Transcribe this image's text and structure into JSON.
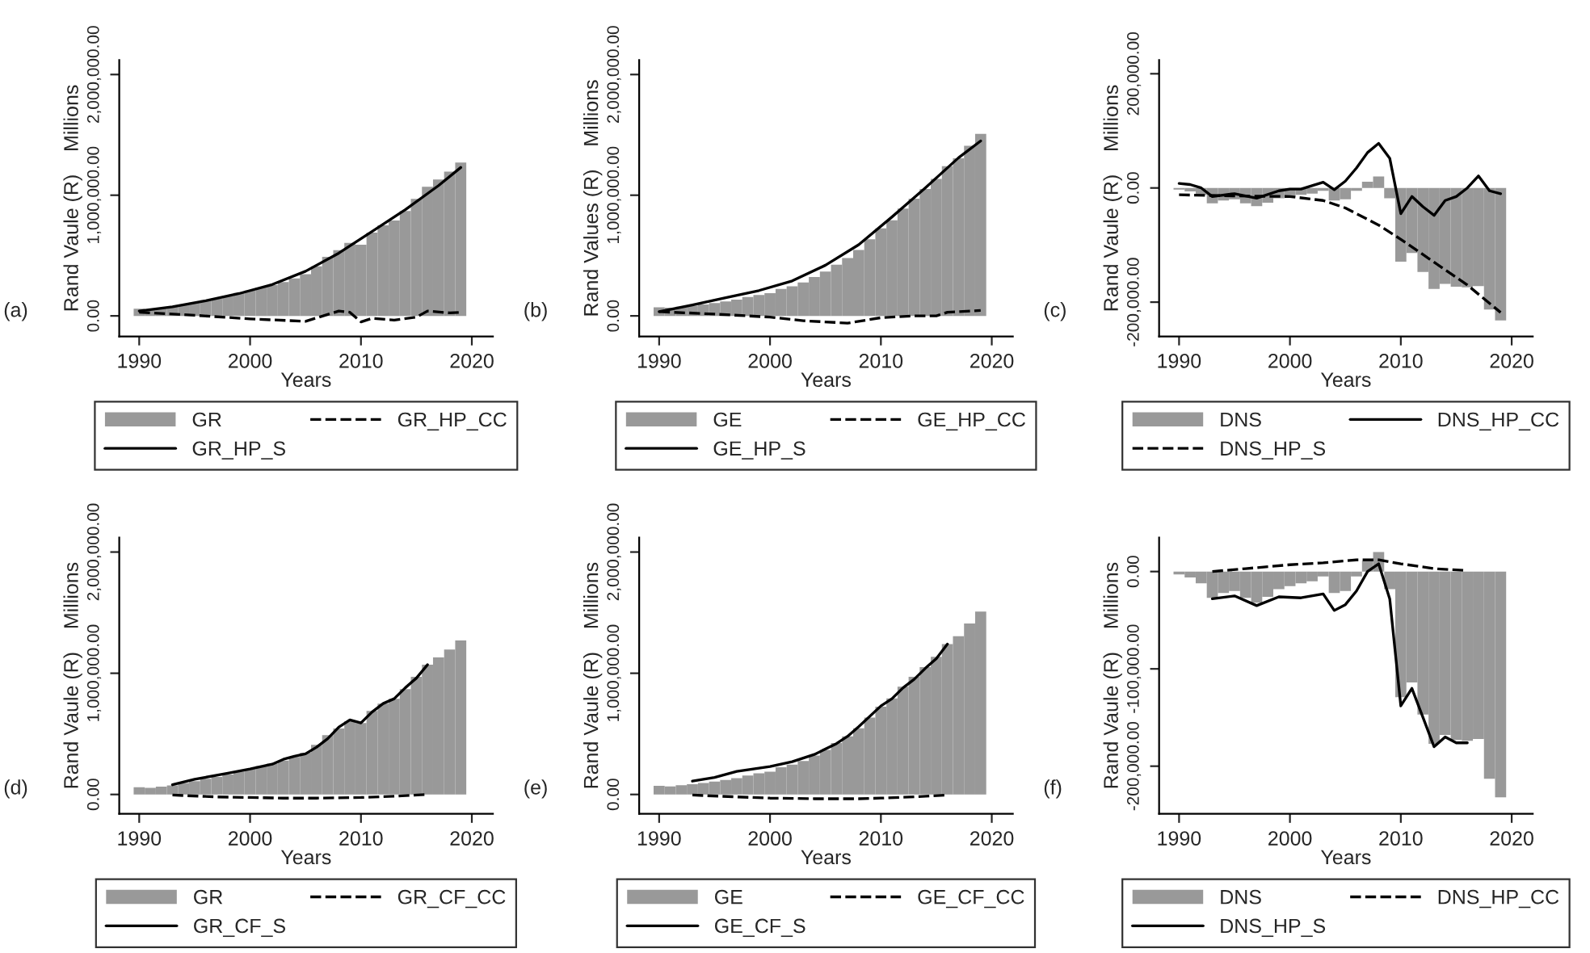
{
  "chart_data": [
    {
      "type": "bar",
      "xlabel": "Years",
      "ylabel": "Rand Vaule (R)    Millions",
      "annotations": [
        "(a)"
      ],
      "legend": "bottom",
      "xlim": [
        1988.2,
        2021.9
      ],
      "xticks": [
        1990,
        2000,
        2010,
        2020
      ],
      "ylim": [
        -170000,
        2120000
      ],
      "yticks": [
        {
          "value": 0,
          "label": "0.00"
        },
        {
          "value": 1000000,
          "label": "1,000,000.00"
        },
        {
          "value": 2000000,
          "label": "2,000,000.00"
        }
      ],
      "series": [
        {
          "name": "GR",
          "color": "#999999",
          "x": [
            1990,
            1991,
            1992,
            1993,
            1994,
            1995,
            1996,
            1997,
            1998,
            1999,
            2000,
            2001,
            2002,
            2003,
            2004,
            2005,
            2006,
            2007,
            2008,
            2009,
            2010,
            2011,
            2012,
            2013,
            2014,
            2015,
            2016,
            2017,
            2018,
            2019
          ],
          "values": [
            60000,
            55000,
            65000,
            75000,
            95000,
            110000,
            130000,
            145000,
            165000,
            190000,
            210000,
            235000,
            255000,
            280000,
            310000,
            345000,
            410000,
            490000,
            545000,
            605000,
            590000,
            690000,
            750000,
            790000,
            870000,
            970000,
            1070000,
            1130000,
            1195000,
            1270000
          ]
        },
        {
          "name": "GR_HP_CC",
          "type": "line",
          "line_style": "dashed",
          "color": "#000000",
          "x": [
            1990,
            1995,
            2000,
            2005,
            2008,
            2009,
            2010,
            2011,
            2013,
            2015,
            2016,
            2018,
            2019
          ],
          "values": [
            30000,
            5000,
            -25000,
            -45000,
            40000,
            30000,
            -50000,
            -20000,
            -35000,
            -10000,
            40000,
            25000,
            30000
          ]
        },
        {
          "name": "GR_HP_S",
          "type": "line",
          "line_style": "solid",
          "color": "#000000",
          "x": [
            1990,
            1993,
            1996,
            1999,
            2002,
            2005,
            2008,
            2011,
            2014,
            2017,
            2019
          ],
          "values": [
            40000,
            75000,
            125000,
            185000,
            260000,
            370000,
            520000,
            700000,
            880000,
            1080000,
            1230000
          ]
        }
      ]
    },
    {
      "type": "bar",
      "xlabel": "Years",
      "ylabel": "Rand Values (R)    Millions",
      "annotations": [
        "(b)"
      ],
      "legend": "bottom",
      "xlim": [
        1988.2,
        2021.9
      ],
      "xticks": [
        1990,
        2000,
        2010,
        2020
      ],
      "ylim": [
        -170000,
        2120000
      ],
      "yticks": [
        {
          "value": 0,
          "label": "0.00"
        },
        {
          "value": 1000000,
          "label": "1,000,000.00"
        },
        {
          "value": 2000000,
          "label": "2,000,000.00"
        }
      ],
      "series": [
        {
          "name": "GE",
          "color": "#999999",
          "x": [
            1990,
            1991,
            1992,
            1993,
            1994,
            1995,
            1996,
            1997,
            1998,
            1999,
            2000,
            2001,
            2002,
            2003,
            2004,
            2005,
            2006,
            2007,
            2008,
            2009,
            2010,
            2011,
            2012,
            2013,
            2014,
            2015,
            2016,
            2017,
            2018,
            2019
          ],
          "values": [
            72000,
            67000,
            76000,
            85000,
            94000,
            107000,
            120000,
            134000,
            157000,
            174000,
            188000,
            224000,
            246000,
            277000,
            322000,
            367000,
            425000,
            479000,
            546000,
            635000,
            725000,
            792000,
            890000,
            971000,
            1051000,
            1136000,
            1240000,
            1306000,
            1410000,
            1508000
          ]
        },
        {
          "name": "GE_HP_CC",
          "type": "line",
          "line_style": "dashed",
          "color": "#000000",
          "x": [
            1990,
            1995,
            2000,
            2003,
            2007,
            2010,
            2013,
            2015,
            2016,
            2019
          ],
          "values": [
            35000,
            15000,
            -10000,
            -40000,
            -60000,
            -15000,
            0,
            0,
            30000,
            45000
          ]
        },
        {
          "name": "GE_HP_S",
          "type": "line",
          "line_style": "solid",
          "color": "#000000",
          "x": [
            1990,
            1993,
            1996,
            1999,
            2002,
            2005,
            2008,
            2011,
            2014,
            2017,
            2019
          ],
          "values": [
            35000,
            90000,
            150000,
            210000,
            290000,
            420000,
            590000,
            820000,
            1060000,
            1310000,
            1450000
          ]
        }
      ]
    },
    {
      "type": "bar",
      "xlabel": "Years",
      "ylabel": "Rand Vaule (R)    Millions",
      "annotations": [
        "(c)"
      ],
      "legend": "bottom",
      "xlim": [
        1988.2,
        2021.9
      ],
      "xticks": [
        1990,
        2000,
        2010,
        2020
      ],
      "ylim": [
        -260000,
        224000
      ],
      "yticks": [
        {
          "value": -200000,
          "label": "-200,000.00"
        },
        {
          "value": 0,
          "label": "0.00"
        },
        {
          "value": 200000,
          "label": "200,000.00"
        }
      ],
      "series": [
        {
          "name": "DNS",
          "color": "#999999",
          "x": [
            1990,
            1991,
            1992,
            1993,
            1994,
            1995,
            1996,
            1997,
            1998,
            1999,
            2000,
            2001,
            2002,
            2003,
            2004,
            2005,
            2006,
            2007,
            2008,
            2009,
            2010,
            2011,
            2012,
            2013,
            2014,
            2015,
            2016,
            2017,
            2018,
            2019
          ],
          "values": [
            -3000,
            -6000,
            -12000,
            -27000,
            -22000,
            -20000,
            -27000,
            -32000,
            -26000,
            -18000,
            -15000,
            -12000,
            -10000,
            -5000,
            -22000,
            -20000,
            -5000,
            11000,
            20000,
            -18000,
            -129000,
            -114000,
            -147000,
            -177000,
            -168000,
            -173000,
            -174000,
            -172000,
            -213000,
            -232000
          ]
        },
        {
          "name": "DNS_HP_CC",
          "type": "line",
          "line_style": "solid",
          "color": "#000000",
          "x": [
            1990,
            1991,
            1992,
            1993,
            1995,
            1997,
            1999,
            2000,
            2001,
            2003,
            2004,
            2005,
            2006,
            2007,
            2008,
            2009,
            2010,
            2011,
            2012,
            2013,
            2014,
            2015,
            2016,
            2017,
            2018,
            2019
          ],
          "values": [
            8000,
            6000,
            0,
            -15000,
            -10000,
            -18000,
            -5000,
            -2000,
            -2000,
            10000,
            -3000,
            12000,
            35000,
            62000,
            78000,
            52000,
            -45000,
            -15000,
            -33000,
            -48000,
            -22000,
            -15000,
            0,
            21000,
            -5000,
            -10000
          ]
        },
        {
          "name": "DNS_HP_S",
          "type": "line",
          "line_style": "dashed",
          "color": "#000000",
          "x": [
            1990,
            1995,
            2000,
            2003,
            2005,
            2008,
            2010,
            2013,
            2016,
            2019
          ],
          "values": [
            -12000,
            -14000,
            -15000,
            -22000,
            -35000,
            -65000,
            -90000,
            -130000,
            -170000,
            -218000
          ]
        }
      ]
    },
    {
      "type": "bar",
      "xlabel": "Years",
      "ylabel": "Rand Vaule (R)    Millions",
      "annotations": [
        "(d)"
      ],
      "legend": "bottom",
      "xlim": [
        1988.2,
        2021.9
      ],
      "xticks": [
        1990,
        2000,
        2010,
        2020
      ],
      "ylim": [
        -160000,
        2120000
      ],
      "yticks": [
        {
          "value": 0,
          "label": "0.00"
        },
        {
          "value": 1000000,
          "label": "1,000,000.00"
        },
        {
          "value": 2000000,
          "label": "2,000,000.00"
        }
      ],
      "series": [
        {
          "name": "GR",
          "color": "#999999",
          "x": [
            1990,
            1991,
            1992,
            1993,
            1994,
            1995,
            1996,
            1997,
            1998,
            1999,
            2000,
            2001,
            2002,
            2003,
            2004,
            2005,
            2006,
            2007,
            2008,
            2009,
            2010,
            2011,
            2012,
            2013,
            2014,
            2015,
            2016,
            2017,
            2018,
            2019
          ],
          "values": [
            60000,
            55000,
            65000,
            75000,
            95000,
            110000,
            130000,
            145000,
            165000,
            190000,
            210000,
            235000,
            255000,
            280000,
            310000,
            345000,
            410000,
            490000,
            545000,
            605000,
            590000,
            690000,
            750000,
            790000,
            870000,
            970000,
            1070000,
            1130000,
            1195000,
            1270000
          ]
        },
        {
          "name": "GR_CF_CC",
          "type": "line",
          "line_style": "dashed",
          "color": "#000000",
          "x": [
            1993,
            1997,
            2000,
            2003,
            2006,
            2010,
            2013,
            2016
          ],
          "values": [
            -5000,
            -20000,
            -25000,
            -30000,
            -30000,
            -25000,
            -15000,
            0
          ]
        },
        {
          "name": "GR_CF_S",
          "type": "line",
          "line_style": "solid",
          "color": "#000000",
          "x": [
            1993,
            1995,
            1998,
            2000,
            2002,
            2003,
            2004,
            2005,
            2006,
            2007,
            2008,
            2009,
            2010,
            2011,
            2012,
            2013,
            2014,
            2015,
            2016
          ],
          "values": [
            80000,
            125000,
            175000,
            210000,
            250000,
            290000,
            315000,
            335000,
            390000,
            460000,
            555000,
            615000,
            590000,
            680000,
            750000,
            790000,
            880000,
            960000,
            1070000
          ]
        }
      ]
    },
    {
      "type": "bar",
      "xlabel": "Years",
      "ylabel": "Rand Vaule (R)    Millions",
      "annotations": [
        "(e)"
      ],
      "legend": "bottom",
      "xlim": [
        1988.2,
        2021.9
      ],
      "xticks": [
        1990,
        2000,
        2010,
        2020
      ],
      "ylim": [
        -160000,
        2120000
      ],
      "yticks": [
        {
          "value": 0,
          "label": "0.00"
        },
        {
          "value": 1000000,
          "label": "1,000,000.00"
        },
        {
          "value": 2000000,
          "label": "2,000,000.00"
        }
      ],
      "series": [
        {
          "name": "GE",
          "color": "#999999",
          "x": [
            1990,
            1991,
            1992,
            1993,
            1994,
            1995,
            1996,
            1997,
            1998,
            1999,
            2000,
            2001,
            2002,
            2003,
            2004,
            2005,
            2006,
            2007,
            2008,
            2009,
            2010,
            2011,
            2012,
            2013,
            2014,
            2015,
            2016,
            2017,
            2018,
            2019
          ],
          "values": [
            72000,
            67000,
            76000,
            85000,
            94000,
            107000,
            120000,
            134000,
            157000,
            174000,
            188000,
            224000,
            246000,
            277000,
            322000,
            367000,
            425000,
            479000,
            546000,
            635000,
            725000,
            792000,
            890000,
            971000,
            1051000,
            1136000,
            1240000,
            1306000,
            1410000,
            1508000
          ]
        },
        {
          "name": "GE_CF_CC",
          "type": "line",
          "line_style": "dashed",
          "color": "#000000",
          "x": [
            1993,
            1997,
            2000,
            2004,
            2008,
            2010,
            2013,
            2016
          ],
          "values": [
            -5000,
            -20000,
            -30000,
            -35000,
            -35000,
            -30000,
            -20000,
            -5000
          ]
        },
        {
          "name": "GE_CF_S",
          "type": "line",
          "line_style": "solid",
          "color": "#000000",
          "x": [
            1993,
            1995,
            1997,
            2000,
            2002,
            2004,
            2006,
            2007,
            2008,
            2010,
            2011,
            2012,
            2013,
            2014,
            2015,
            2016
          ],
          "values": [
            110000,
            140000,
            190000,
            230000,
            270000,
            330000,
            420000,
            480000,
            560000,
            730000,
            790000,
            880000,
            950000,
            1040000,
            1120000,
            1240000
          ]
        }
      ]
    },
    {
      "type": "bar",
      "xlabel": "Years",
      "ylabel": "Rand Vaule (R)    Millions",
      "annotations": [
        "(f)"
      ],
      "legend": "bottom",
      "xlim": [
        1988.2,
        2021.9
      ],
      "xticks": [
        1990,
        2000,
        2010,
        2020
      ],
      "ylim": [
        -249000,
        35000
      ],
      "yticks": [
        {
          "value": -200000,
          "label": "-200,000.00"
        },
        {
          "value": -100000,
          "label": "-100,000.00"
        },
        {
          "value": 0,
          "label": "0.00"
        }
      ],
      "series": [
        {
          "name": "DNS",
          "color": "#999999",
          "x": [
            1990,
            1991,
            1992,
            1993,
            1994,
            1995,
            1996,
            1997,
            1998,
            1999,
            2000,
            2001,
            2002,
            2003,
            2004,
            2005,
            2006,
            2007,
            2008,
            2009,
            2010,
            2011,
            2012,
            2013,
            2014,
            2015,
            2016,
            2017,
            2018,
            2019
          ],
          "values": [
            -3000,
            -6000,
            -12000,
            -27000,
            -22000,
            -20000,
            -27000,
            -32000,
            -26000,
            -18000,
            -15000,
            -12000,
            -10000,
            -5000,
            -22000,
            -20000,
            -5000,
            11000,
            20000,
            -18000,
            -129000,
            -114000,
            -147000,
            -177000,
            -168000,
            -173000,
            -174000,
            -172000,
            -213000,
            -232000
          ]
        },
        {
          "name": "DNS_HP_CC",
          "type": "line",
          "line_style": "dashed",
          "color": "#000000",
          "x": [
            1993,
            1996,
            2000,
            2003,
            2006,
            2008,
            2010,
            2013,
            2016
          ],
          "values": [
            0,
            3000,
            7000,
            9000,
            12000,
            12000,
            8000,
            3000,
            1000
          ]
        },
        {
          "name": "DNS_HP_S",
          "type": "line",
          "line_style": "solid",
          "color": "#000000",
          "x": [
            1993,
            1995,
            1997,
            1999,
            2001,
            2003,
            2004,
            2005,
            2006,
            2007,
            2008,
            2009,
            2010,
            2011,
            2012,
            2013,
            2014,
            2015,
            2016
          ],
          "values": [
            -28000,
            -25000,
            -35000,
            -26000,
            -27000,
            -23000,
            -40000,
            -34000,
            -20000,
            0,
            8000,
            -28000,
            -138000,
            -120000,
            -150000,
            -180000,
            -170000,
            -176000,
            -176000
          ]
        }
      ]
    }
  ]
}
